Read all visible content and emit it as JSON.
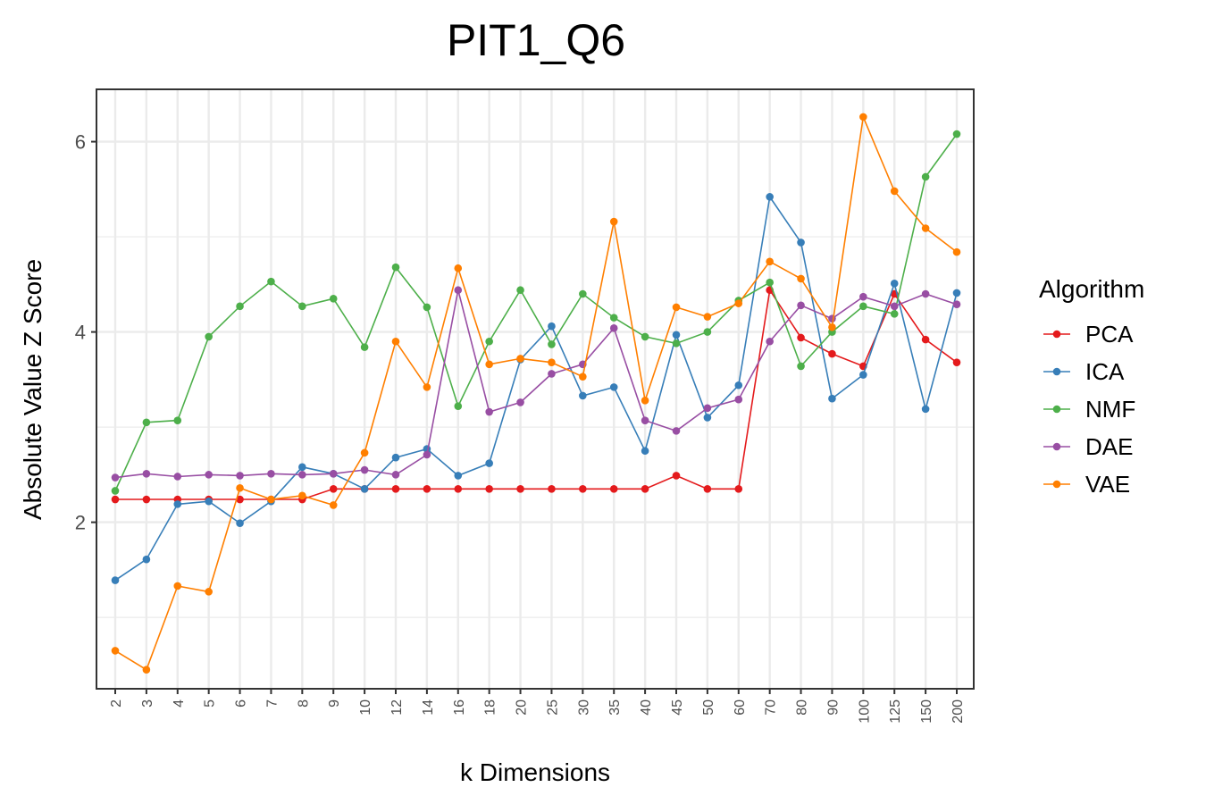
{
  "chart_data": {
    "type": "line",
    "title": "PIT1_Q6",
    "xlabel": "k Dimensions",
    "ylabel": "Absolute Value Z Score",
    "categories": [
      "2",
      "3",
      "4",
      "5",
      "6",
      "7",
      "8",
      "9",
      "10",
      "12",
      "14",
      "16",
      "18",
      "20",
      "25",
      "30",
      "35",
      "40",
      "45",
      "50",
      "60",
      "70",
      "80",
      "90",
      "100",
      "125",
      "150",
      "200"
    ],
    "yticks": [
      2,
      4,
      6
    ],
    "ylim": [
      0.25,
      6.55
    ],
    "grid": true,
    "legend": {
      "title": "Algorithm",
      "placement": "right"
    },
    "series": [
      {
        "name": "PCA",
        "color": "#e41a1c",
        "values": [
          2.24,
          2.24,
          2.24,
          2.24,
          2.24,
          2.24,
          2.24,
          2.35,
          2.35,
          2.35,
          2.35,
          2.35,
          2.35,
          2.35,
          2.35,
          2.35,
          2.35,
          2.35,
          2.49,
          2.35,
          2.35,
          4.44,
          3.94,
          3.77,
          3.64,
          4.4,
          3.92,
          3.68
        ]
      },
      {
        "name": "ICA",
        "color": "#377eb8",
        "values": [
          1.39,
          1.61,
          2.19,
          2.22,
          1.99,
          2.22,
          2.58,
          2.51,
          2.35,
          2.68,
          2.77,
          2.49,
          2.62,
          3.71,
          4.06,
          3.33,
          3.42,
          2.75,
          3.97,
          3.1,
          3.44,
          5.42,
          4.94,
          3.3,
          3.55,
          4.51,
          3.19,
          4.41
        ]
      },
      {
        "name": "NMF",
        "color": "#4daf4a",
        "values": [
          2.33,
          3.05,
          3.07,
          3.95,
          4.27,
          4.53,
          4.27,
          4.35,
          3.84,
          4.68,
          4.26,
          3.22,
          3.9,
          4.44,
          3.87,
          4.4,
          4.15,
          3.95,
          3.88,
          4.0,
          4.33,
          4.52,
          3.64,
          4.0,
          4.27,
          4.19,
          5.63,
          6.08
        ]
      },
      {
        "name": "DAE",
        "color": "#984ea3",
        "values": [
          2.47,
          2.51,
          2.48,
          2.5,
          2.49,
          2.51,
          2.5,
          2.51,
          2.55,
          2.5,
          2.71,
          4.44,
          3.16,
          3.26,
          3.56,
          3.66,
          4.04,
          3.07,
          2.96,
          3.2,
          3.29,
          3.9,
          4.28,
          4.14,
          4.37,
          4.27,
          4.4,
          4.29
        ]
      },
      {
        "name": "VAE",
        "color": "#ff7f00",
        "values": [
          0.65,
          0.45,
          1.33,
          1.27,
          2.36,
          2.24,
          2.28,
          2.18,
          2.73,
          3.9,
          3.42,
          4.67,
          3.66,
          3.72,
          3.68,
          3.53,
          5.16,
          3.28,
          4.26,
          4.16,
          4.3,
          4.74,
          4.56,
          4.05,
          6.26,
          5.48,
          5.09,
          4.84
        ]
      }
    ]
  }
}
